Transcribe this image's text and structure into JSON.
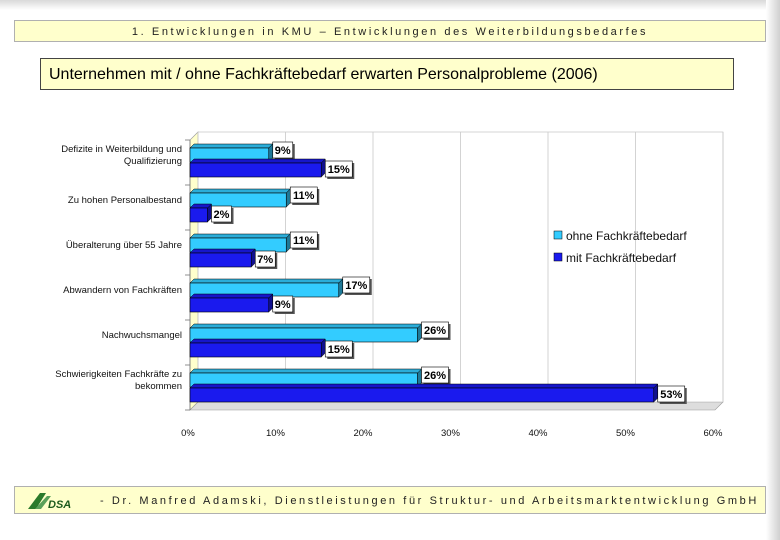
{
  "header": {
    "text": "1. Entwicklungen in KMU – Entwicklungen des Weiterbildungsbedarfes"
  },
  "title": {
    "text": "Unternehmen mit / ohne Fachkräftebedarf erwarten Personalprobleme (2006)"
  },
  "footer": {
    "text": "- Dr. Manfred Adamski, Dienstleistungen für Struktur- und Arbeitsmarktentwicklung GmbH",
    "logo_text": "DSA"
  },
  "colors": {
    "ohne": "#33ccff",
    "mit": "#1a1aee",
    "panel": "#ffffcc"
  },
  "chart_data": {
    "type": "bar",
    "orientation": "horizontal",
    "title": "Unternehmen mit / ohne Fachkräftebedarf erwarten Personalprobleme (2006)",
    "categories": [
      [
        "Defizite in Weiterbildung und",
        "Qualifizierung"
      ],
      [
        "Zu hohen Personalbestand"
      ],
      [
        "Überalterung über 55 Jahre"
      ],
      [
        "Abwandern von Fachkräften"
      ],
      [
        "Nachwuchsmangel"
      ],
      [
        "Schwierigkeiten Fachkräfte zu",
        "bekommen"
      ]
    ],
    "series": [
      {
        "name": "ohne Fachkräftebedarf",
        "values": [
          9,
          11,
          11,
          17,
          26,
          26
        ]
      },
      {
        "name": "mit Fachkräftebedarf",
        "values": [
          15,
          2,
          7,
          9,
          15,
          53
        ]
      }
    ],
    "value_labels": [
      [
        "9%",
        "11%",
        "11%",
        "17%",
        "26%",
        "26%"
      ],
      [
        "15%",
        "2%",
        "7%",
        "9%",
        "15%",
        "53%"
      ]
    ],
    "xlim": [
      0,
      60
    ],
    "xticks": [
      "0%",
      "10%",
      "20%",
      "30%",
      "40%",
      "50%",
      "60%"
    ],
    "grid": true,
    "legend_position": "right"
  }
}
